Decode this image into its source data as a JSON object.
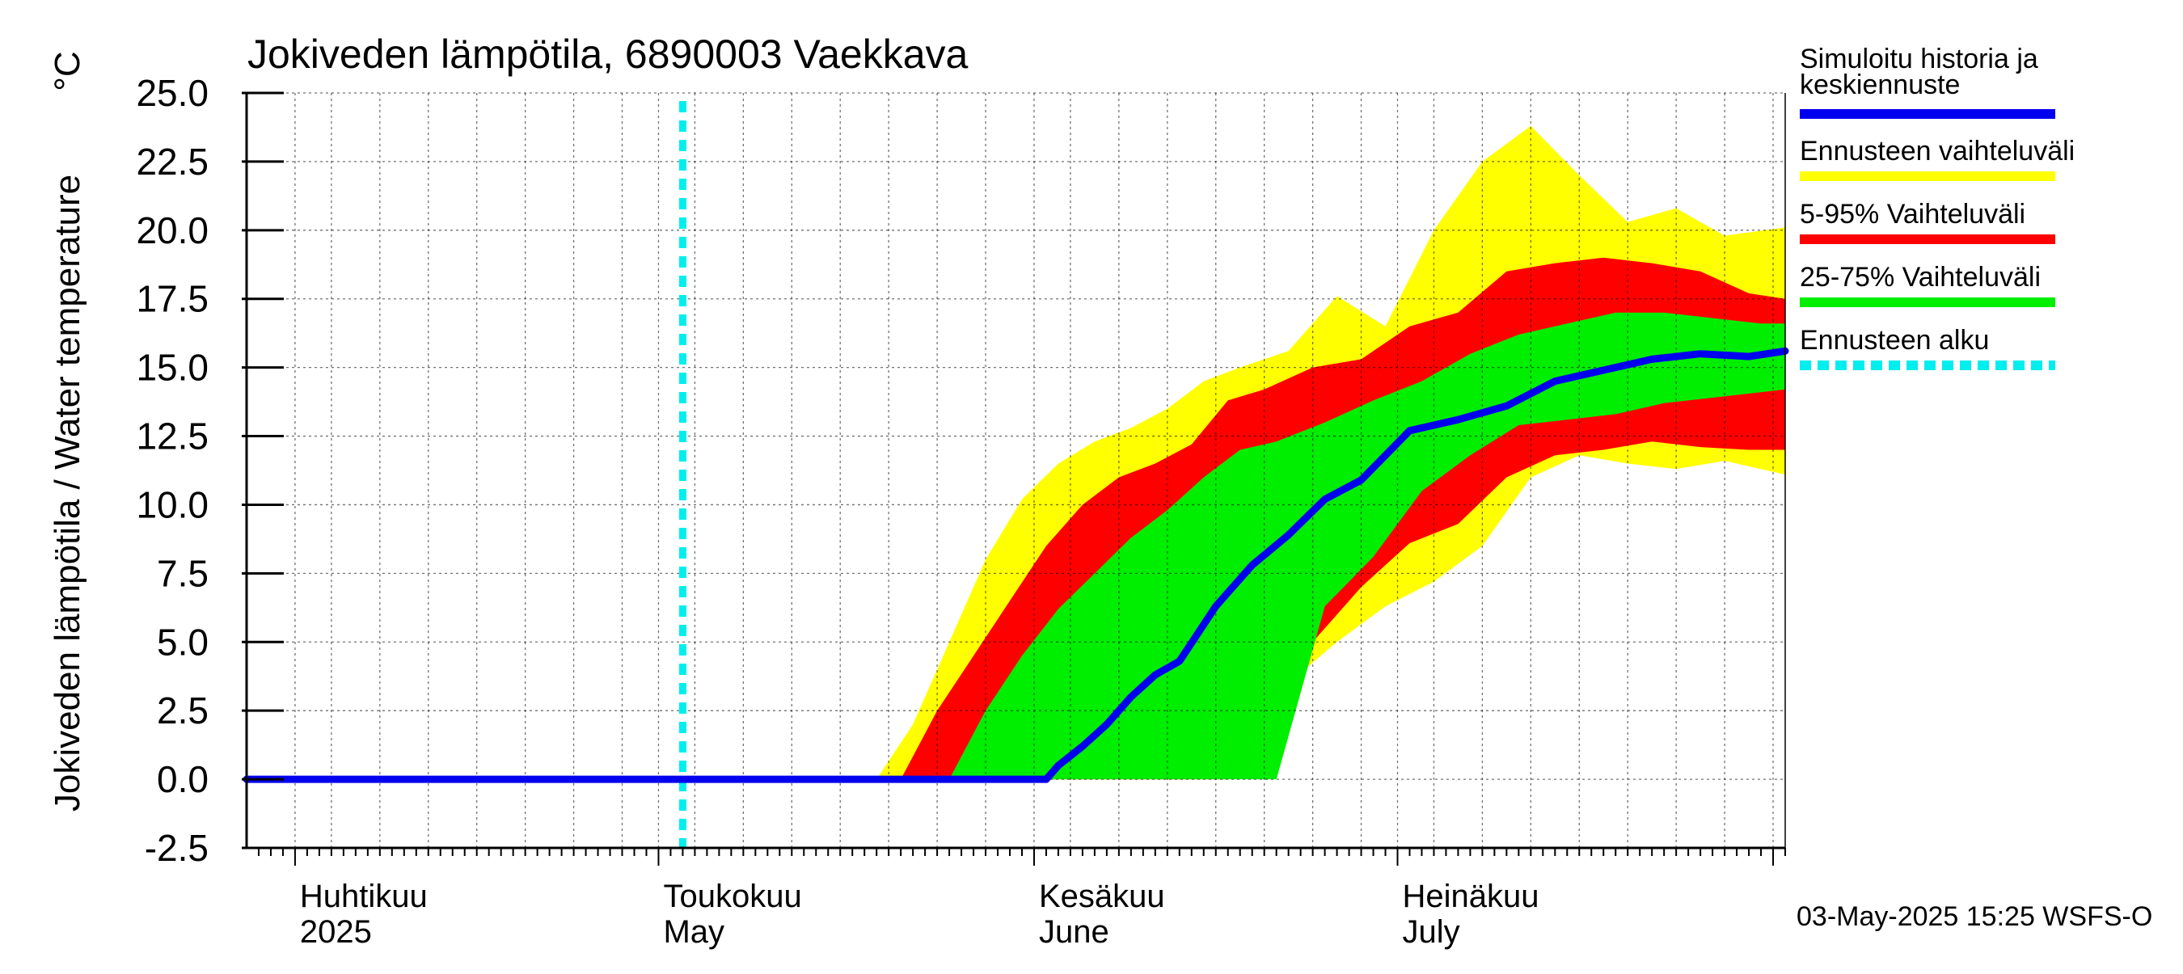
{
  "chart_data": {
    "type": "area",
    "title": "Jokiveden lämpötila, 6890003 Vaekkava",
    "ylabel": "Jokiveden lämpötila / Water temperature",
    "yunit": "°C",
    "ylim": [
      -2.5,
      25.0
    ],
    "yticks": [
      -2.5,
      0.0,
      2.5,
      5.0,
      7.5,
      10.0,
      12.5,
      15.0,
      17.5,
      20.0,
      22.5,
      25.0
    ],
    "ytick_labels": [
      "-2.5",
      "0.0",
      "2.5",
      "5.0",
      "7.5",
      "10.0",
      "12.5",
      "15.0",
      "17.5",
      "20.0",
      "22.5",
      "25.0"
    ],
    "xlim": [
      "2025-03-28",
      "2025-08-02"
    ],
    "month_labels": [
      {
        "date": "2025-04-01",
        "fi": "Huhtikuu",
        "en": "2025"
      },
      {
        "date": "2025-05-01",
        "fi": "Toukokuu",
        "en": "May"
      },
      {
        "date": "2025-06-01",
        "fi": "Kesäkuu",
        "en": "June"
      },
      {
        "date": "2025-07-01",
        "fi": "Heinäkuu",
        "en": "July"
      }
    ],
    "grid": true,
    "forecast_start": "2025-05-03",
    "footer": "03-May-2025 15:25 WSFS-O",
    "legend": [
      {
        "label": "Simuloitu historia ja keskiennuste",
        "color": "#0000ee",
        "style": "solid"
      },
      {
        "label": "Ennusteen vaihteluväli",
        "color": "#ffff00",
        "style": "solid"
      },
      {
        "label": "5-95% Vaihteluväli",
        "color": "#ff0000",
        "style": "solid"
      },
      {
        "label": "25-75% Vaihteluväli",
        "color": "#00ee00",
        "style": "solid"
      },
      {
        "label": "Ennusteen alku",
        "color": "#00eeee",
        "style": "dashed"
      }
    ],
    "series": [
      {
        "name": "Simuloitu historia ja keskiennuste",
        "color": "#0000ee",
        "x": [
          "2025-03-28",
          "2025-05-03",
          "2025-06-02",
          "2025-06-03",
          "2025-06-05",
          "2025-06-07",
          "2025-06-09",
          "2025-06-11",
          "2025-06-13",
          "2025-06-16",
          "2025-06-19",
          "2025-06-22",
          "2025-06-25",
          "2025-06-28",
          "2025-07-02",
          "2025-07-06",
          "2025-07-10",
          "2025-07-14",
          "2025-07-18",
          "2025-07-22",
          "2025-07-26",
          "2025-07-30",
          "2025-08-02"
        ],
        "y": [
          0,
          0,
          0,
          0.5,
          1.2,
          2.0,
          3.0,
          3.8,
          4.3,
          6.3,
          7.8,
          8.9,
          10.2,
          10.9,
          12.7,
          13.1,
          13.6,
          14.5,
          14.9,
          15.3,
          15.5,
          15.4,
          15.6
        ]
      },
      {
        "name": "Ennusteen vaihteluväli",
        "color": "#ffff00",
        "x": [
          "2025-05-19",
          "2025-05-22",
          "2025-05-25",
          "2025-05-28",
          "2025-05-31",
          "2025-06-03",
          "2025-06-06",
          "2025-06-09",
          "2025-06-12",
          "2025-06-15",
          "2025-06-18",
          "2025-06-22",
          "2025-06-26",
          "2025-06-30",
          "2025-07-04",
          "2025-07-08",
          "2025-07-12",
          "2025-07-16",
          "2025-07-20",
          "2025-07-24",
          "2025-07-28",
          "2025-08-02"
        ],
        "lower": [
          0,
          0,
          0,
          0,
          0,
          0,
          0,
          0,
          0,
          0,
          0.5,
          3.5,
          5.0,
          6.3,
          7.2,
          8.5,
          11.0,
          11.8,
          11.5,
          11.3,
          11.6,
          11.1
        ],
        "upper": [
          0,
          2.0,
          5.0,
          8.0,
          10.2,
          11.5,
          12.3,
          12.8,
          13.5,
          14.5,
          15.0,
          15.6,
          17.6,
          16.5,
          20.0,
          22.5,
          23.8,
          22.0,
          20.3,
          20.8,
          19.8,
          20.1
        ]
      },
      {
        "name": "5-95% Vaihteluväli",
        "color": "#ff0000",
        "x": [
          "2025-05-21",
          "2025-05-24",
          "2025-05-27",
          "2025-05-30",
          "2025-06-02",
          "2025-06-05",
          "2025-06-08",
          "2025-06-11",
          "2025-06-14",
          "2025-06-17",
          "2025-06-20",
          "2025-06-24",
          "2025-06-28",
          "2025-07-02",
          "2025-07-06",
          "2025-07-10",
          "2025-07-14",
          "2025-07-18",
          "2025-07-22",
          "2025-07-26",
          "2025-07-30",
          "2025-08-02"
        ],
        "lower": [
          0,
          0,
          0,
          0,
          0,
          0,
          0,
          0,
          0,
          0,
          2.5,
          5.0,
          7.0,
          8.6,
          9.3,
          11.0,
          11.8,
          12.0,
          12.3,
          12.1,
          12.0,
          12.0
        ],
        "upper": [
          0,
          2.5,
          4.5,
          6.5,
          8.5,
          10.0,
          11.0,
          11.5,
          12.2,
          13.8,
          14.2,
          15.0,
          15.3,
          16.5,
          17.0,
          18.5,
          18.8,
          19.0,
          18.8,
          18.5,
          17.7,
          17.5
        ]
      },
      {
        "name": "25-75% Vaihteluväli",
        "color": "#00ee00",
        "x": [
          "2025-05-25",
          "2025-05-28",
          "2025-05-31",
          "2025-06-03",
          "2025-06-06",
          "2025-06-09",
          "2025-06-12",
          "2025-06-15",
          "2025-06-18",
          "2025-06-21",
          "2025-06-25",
          "2025-06-29",
          "2025-07-03",
          "2025-07-07",
          "2025-07-11",
          "2025-07-15",
          "2025-07-19",
          "2025-07-23",
          "2025-07-27",
          "2025-07-31",
          "2025-08-02"
        ],
        "lower": [
          0,
          0,
          0,
          0,
          0,
          0,
          0,
          0,
          0,
          0,
          6.3,
          8.1,
          10.5,
          11.8,
          12.9,
          13.1,
          13.3,
          13.7,
          13.9,
          14.1,
          14.2
        ],
        "upper": [
          0,
          2.5,
          4.5,
          6.2,
          7.5,
          8.8,
          9.8,
          11.0,
          12.0,
          12.3,
          13.0,
          13.8,
          14.5,
          15.5,
          16.2,
          16.6,
          17.0,
          17.0,
          16.8,
          16.6,
          16.6
        ]
      }
    ]
  }
}
